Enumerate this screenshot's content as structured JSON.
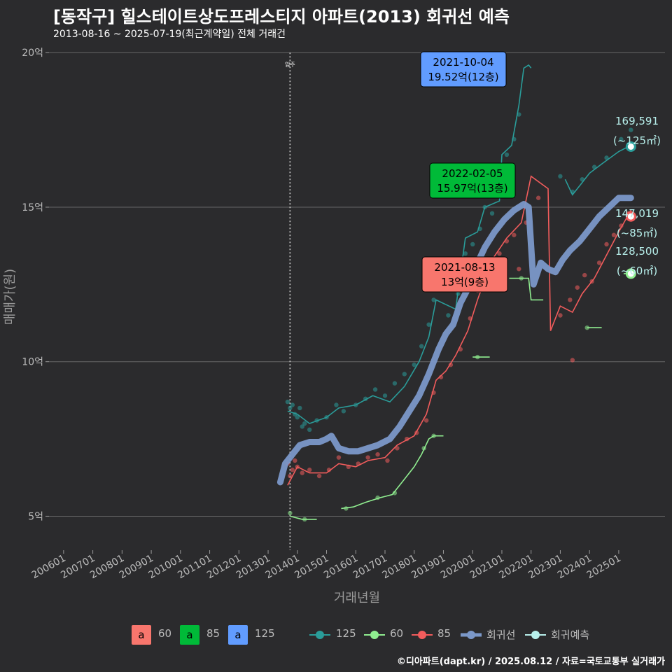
{
  "header": {
    "title": "[동작구] 힐스테이트상도프레스티지 아파트(2013) 회귀선 예측",
    "subtitle": "2013-08-16 ~ 2025-07-19(최근계약일) 전체 거래건"
  },
  "caption": "©디아파트(dapt.kr) / 2025.08.12 / 자료=국토교통부 실거래가",
  "colors": {
    "s60": "#90ee90",
    "s85": "#f25c5c",
    "s125": "#2a9d9a",
    "regression": "#7b98c9",
    "forecast": "#b8f0ec",
    "box60": "#f8766d",
    "box85": "#00ba38",
    "box125": "#619cff"
  },
  "chart_data": {
    "type": "scatter",
    "xlabel": "거래년월",
    "ylabel": "매매가(원)",
    "x_ticks": [
      "200601",
      "200701",
      "200801",
      "200901",
      "201001",
      "201101",
      "201201",
      "201301",
      "201401",
      "201501",
      "201601",
      "201701",
      "201801",
      "201901",
      "202001",
      "202101",
      "202201",
      "202301",
      "202401",
      "202501"
    ],
    "y_ticks": [
      {
        "value": 5,
        "label": "5억"
      },
      {
        "value": 10,
        "label": "10억"
      },
      {
        "value": 15,
        "label": "15억"
      },
      {
        "value": 20,
        "label": "20억"
      }
    ],
    "ylim": [
      3.9,
      20.3
    ],
    "xlim": [
      "2005-07",
      "2026-08"
    ],
    "move_in": {
      "date": "2013-10",
      "label": "입주"
    },
    "series": [
      {
        "name": "125",
        "color": "#2a9d9a",
        "line": [
          [
            "2013-09",
            8.4
          ],
          [
            "2014-01",
            8.3
          ],
          [
            "2014-06",
            8.0
          ],
          [
            "2015-01",
            8.2
          ],
          [
            "2015-06",
            8.5
          ],
          [
            "2016-01",
            8.6
          ],
          [
            "2016-08",
            8.9
          ],
          [
            "2017-03",
            8.7
          ],
          [
            "2017-09",
            9.2
          ],
          [
            "2018-03",
            10.0
          ],
          [
            "2018-07",
            10.8
          ],
          [
            "2018-10",
            12.0
          ],
          [
            "2019-06",
            11.7
          ],
          [
            "2019-10",
            14.0
          ],
          [
            "2020-03",
            14.2
          ],
          [
            "2020-06",
            15.0
          ],
          [
            "2020-12",
            15.2
          ],
          [
            "2021-01",
            16.7
          ],
          [
            "2021-05",
            17.0
          ],
          [
            "2021-08",
            18.3
          ],
          [
            "2021-10",
            19.5
          ],
          [
            "2021-12",
            19.6
          ],
          [
            "2022-01",
            19.5
          ]
        ],
        "line2": [
          [
            "2023-03",
            15.9
          ],
          [
            "2023-06",
            15.4
          ],
          [
            "2023-09",
            15.7
          ],
          [
            "2024-01",
            16.1
          ],
          [
            "2024-06",
            16.4
          ],
          [
            "2025-01",
            16.8
          ],
          [
            "2025-06",
            17.0
          ]
        ],
        "points": [
          [
            "2013-09",
            8.7
          ],
          [
            "2013-10",
            8.5
          ],
          [
            "2013-11",
            8.6
          ],
          [
            "2013-12",
            8.3
          ],
          [
            "2014-01",
            8.2
          ],
          [
            "2014-02",
            8.5
          ],
          [
            "2014-03",
            7.9
          ],
          [
            "2014-04",
            8.0
          ],
          [
            "2014-06",
            7.8
          ],
          [
            "2014-09",
            8.1
          ],
          [
            "2015-01",
            8.2
          ],
          [
            "2015-05",
            8.6
          ],
          [
            "2015-08",
            8.4
          ],
          [
            "2016-01",
            8.6
          ],
          [
            "2016-05",
            8.8
          ],
          [
            "2016-09",
            9.1
          ],
          [
            "2017-01",
            8.9
          ],
          [
            "2017-05",
            9.3
          ],
          [
            "2017-09",
            9.6
          ],
          [
            "2018-01",
            9.9
          ],
          [
            "2018-04",
            10.5
          ],
          [
            "2018-07",
            11.2
          ],
          [
            "2018-09",
            12.0
          ],
          [
            "2018-11",
            12.6
          ],
          [
            "2019-03",
            11.5
          ],
          [
            "2019-07",
            12.2
          ],
          [
            "2019-10",
            13.5
          ],
          [
            "2020-01",
            13.8
          ],
          [
            "2020-04",
            14.3
          ],
          [
            "2020-06",
            15.0
          ],
          [
            "2020-09",
            14.8
          ],
          [
            "2020-12",
            15.4
          ],
          [
            "2021-03",
            16.7
          ],
          [
            "2021-06",
            17.2
          ],
          [
            "2021-08",
            18.0
          ],
          [
            "2023-01",
            16.0
          ],
          [
            "2023-06",
            15.5
          ],
          [
            "2023-10",
            15.9
          ],
          [
            "2024-03",
            16.3
          ],
          [
            "2024-08",
            16.6
          ],
          [
            "2025-02",
            17.2
          ],
          [
            "2025-06",
            17.5
          ]
        ]
      },
      {
        "name": "60",
        "color": "#90ee90",
        "line": [
          [
            "2013-10",
            5.0
          ],
          [
            "2014-03",
            4.9
          ],
          [
            "2014-09",
            4.9
          ]
        ],
        "line2": [
          [
            "2015-07",
            5.25
          ],
          [
            "2015-12",
            5.3
          ],
          [
            "2016-05",
            5.45
          ],
          [
            "2016-11",
            5.6
          ],
          [
            "2017-04",
            5.7
          ],
          [
            "2017-09",
            6.2
          ],
          [
            "2018-01",
            6.6
          ],
          [
            "2018-04",
            7.0
          ],
          [
            "2018-07",
            7.5
          ],
          [
            "2018-09",
            7.6
          ],
          [
            "2019-01",
            7.6
          ]
        ],
        "line3": [
          [
            "2020-01",
            10.15
          ],
          [
            "2020-08",
            10.15
          ]
        ],
        "line4": [
          [
            "2021-04",
            12.7
          ],
          [
            "2021-12",
            12.7
          ],
          [
            "2022-01",
            12.0
          ],
          [
            "2022-06",
            12.0
          ]
        ],
        "line5": [
          [
            "2023-12",
            11.1
          ],
          [
            "2024-06",
            11.1
          ]
        ],
        "line6": [
          [
            "2025-03",
            12.85
          ],
          [
            "2025-07",
            12.85
          ]
        ],
        "points": [
          [
            "2013-10",
            5.1
          ],
          [
            "2014-04",
            4.9
          ],
          [
            "2015-09",
            5.25
          ],
          [
            "2016-10",
            5.6
          ],
          [
            "2017-05",
            5.75
          ],
          [
            "2018-05",
            7.2
          ],
          [
            "2018-09",
            7.6
          ],
          [
            "2020-03",
            10.15
          ],
          [
            "2021-09",
            12.7
          ],
          [
            "2023-12",
            11.1
          ],
          [
            "2025-05",
            12.85
          ]
        ]
      },
      {
        "name": "85",
        "color": "#f25c5c",
        "line": [
          [
            "2013-09",
            6.0
          ],
          [
            "2014-01",
            6.6
          ],
          [
            "2014-06",
            6.4
          ],
          [
            "2015-01",
            6.4
          ],
          [
            "2015-06",
            6.7
          ],
          [
            "2016-01",
            6.6
          ],
          [
            "2016-06",
            6.8
          ],
          [
            "2017-01",
            6.9
          ],
          [
            "2017-06",
            7.3
          ],
          [
            "2018-01",
            7.6
          ],
          [
            "2018-06",
            8.3
          ],
          [
            "2018-10",
            9.4
          ],
          [
            "2019-02",
            9.7
          ],
          [
            "2019-06",
            10.2
          ],
          [
            "2019-11",
            11.0
          ],
          [
            "2020-03",
            12.0
          ],
          [
            "2020-09",
            13.3
          ],
          [
            "2021-03",
            14.0
          ],
          [
            "2021-09",
            14.5
          ],
          [
            "2022-01",
            16.0
          ],
          [
            "2022-08",
            15.6
          ],
          [
            "2022-09",
            11.0
          ],
          [
            "2023-01",
            11.8
          ],
          [
            "2023-06",
            11.6
          ],
          [
            "2023-10",
            12.2
          ],
          [
            "2024-03",
            12.7
          ],
          [
            "2024-09",
            13.6
          ],
          [
            "2025-01",
            14.2
          ],
          [
            "2025-06",
            14.9
          ]
        ],
        "points": [
          [
            "2013-09",
            6.7
          ],
          [
            "2013-10",
            6.3
          ],
          [
            "2013-11",
            6.5
          ],
          [
            "2013-12",
            6.8
          ],
          [
            "2014-01",
            6.6
          ],
          [
            "2014-03",
            6.4
          ],
          [
            "2014-06",
            6.5
          ],
          [
            "2014-10",
            6.3
          ],
          [
            "2015-02",
            6.5
          ],
          [
            "2015-06",
            6.9
          ],
          [
            "2015-10",
            6.6
          ],
          [
            "2016-02",
            6.7
          ],
          [
            "2016-06",
            6.9
          ],
          [
            "2016-10",
            7.0
          ],
          [
            "2017-02",
            6.8
          ],
          [
            "2017-06",
            7.2
          ],
          [
            "2017-10",
            7.5
          ],
          [
            "2018-02",
            7.7
          ],
          [
            "2018-06",
            8.1
          ],
          [
            "2018-09",
            9.0
          ],
          [
            "2018-12",
            9.5
          ],
          [
            "2019-04",
            9.9
          ],
          [
            "2019-08",
            10.4
          ],
          [
            "2019-12",
            11.4
          ],
          [
            "2020-03",
            12.3
          ],
          [
            "2020-06",
            12.8
          ],
          [
            "2020-09",
            13.2
          ],
          [
            "2020-12",
            13.5
          ],
          [
            "2021-03",
            13.9
          ],
          [
            "2021-06",
            14.1
          ],
          [
            "2021-08",
            13.0
          ],
          [
            "2021-11",
            14.5
          ],
          [
            "2022-04",
            15.3
          ],
          [
            "2023-01",
            11.5
          ],
          [
            "2023-05",
            12.0
          ],
          [
            "2023-08",
            12.4
          ],
          [
            "2023-11",
            12.8
          ],
          [
            "2024-02",
            12.6
          ],
          [
            "2024-05",
            13.2
          ],
          [
            "2024-08",
            13.8
          ],
          [
            "2024-11",
            14.1
          ],
          [
            "2025-02",
            14.4
          ],
          [
            "2025-05",
            14.8
          ],
          [
            "2023-06",
            10.05
          ]
        ]
      }
    ],
    "regression": {
      "name": "회귀선",
      "color": "#7b98c9",
      "points": [
        [
          "2013-06",
          6.1
        ],
        [
          "2013-08",
          6.7
        ],
        [
          "2013-11",
          7.0
        ],
        [
          "2014-02",
          7.3
        ],
        [
          "2014-06",
          7.4
        ],
        [
          "2014-10",
          7.4
        ],
        [
          "2015-01",
          7.5
        ],
        [
          "2015-03",
          7.6
        ],
        [
          "2015-06",
          7.2
        ],
        [
          "2015-10",
          7.1
        ],
        [
          "2016-02",
          7.1
        ],
        [
          "2016-06",
          7.2
        ],
        [
          "2016-10",
          7.3
        ],
        [
          "2017-03",
          7.5
        ],
        [
          "2017-07",
          7.9
        ],
        [
          "2017-11",
          8.4
        ],
        [
          "2018-03",
          8.9
        ],
        [
          "2018-07",
          9.6
        ],
        [
          "2018-11",
          10.4
        ],
        [
          "2019-02",
          10.9
        ],
        [
          "2019-05",
          11.2
        ],
        [
          "2019-08",
          11.9
        ],
        [
          "2019-12",
          12.5
        ],
        [
          "2020-03",
          13.2
        ],
        [
          "2020-06",
          13.7
        ],
        [
          "2020-10",
          14.2
        ],
        [
          "2021-02",
          14.6
        ],
        [
          "2021-06",
          14.9
        ],
        [
          "2021-10",
          15.1
        ],
        [
          "2021-12",
          15.0
        ],
        [
          "2022-02",
          12.5
        ],
        [
          "2022-05",
          13.2
        ],
        [
          "2022-08",
          13.0
        ],
        [
          "2022-11",
          12.9
        ],
        [
          "2023-02",
          13.3
        ],
        [
          "2023-05",
          13.6
        ],
        [
          "2023-09",
          13.9
        ],
        [
          "2024-01",
          14.3
        ],
        [
          "2024-05",
          14.7
        ],
        [
          "2024-09",
          15.0
        ],
        [
          "2025-01",
          15.3
        ],
        [
          "2025-06",
          15.3
        ]
      ]
    },
    "forecast_label": "회귀예측",
    "forecast": [
      {
        "series": "125",
        "date": "2025-06",
        "value": 16.96,
        "price": "169,591",
        "area": "(~125㎡)",
        "color": "#2a9d9a"
      },
      {
        "series": "85",
        "date": "2025-06",
        "value": 14.7,
        "price": "147,019",
        "area": "(~85㎡)",
        "color": "#f25c5c"
      },
      {
        "series": "60",
        "date": "2025-06",
        "value": 12.85,
        "price": "128,500",
        "area": "(~60㎡)",
        "color": "#90ee90"
      }
    ],
    "annotations": [
      {
        "date": "2021-10-04",
        "value": 19.52,
        "line1": "2021-10-04",
        "line2": "19.52억(12층)",
        "fill": "#619cff"
      },
      {
        "date": "2022-02-05",
        "value": 15.97,
        "line1": "2022-02-05",
        "line2": "15.97억(13층)",
        "fill": "#00ba38"
      },
      {
        "date": "2021-08-13",
        "value": 13.0,
        "line1": "2021-08-13",
        "line2": "13억(9층)",
        "fill": "#f8766d"
      }
    ],
    "legend": {
      "boxes": [
        {
          "glyph": "a",
          "label": "60",
          "color": "#f8766d"
        },
        {
          "glyph": "a",
          "label": "85",
          "color": "#00ba38"
        },
        {
          "glyph": "a",
          "label": "125",
          "color": "#619cff"
        }
      ],
      "lines": [
        {
          "label": "125",
          "color": "#2a9d9a"
        },
        {
          "label": "60",
          "color": "#90ee90"
        },
        {
          "label": "85",
          "color": "#f25c5c"
        },
        {
          "label": "회귀선",
          "color": "#7b98c9"
        },
        {
          "label": "회귀예측",
          "color": "#b8f0ec"
        }
      ]
    }
  }
}
